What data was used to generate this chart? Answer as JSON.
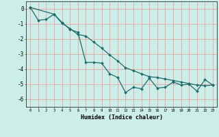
{
  "xlabel": "Humidex (Indice chaleur)",
  "bg_color": "#cceee8",
  "grid_color": "#f0a0a0",
  "line_color": "#1a6b6b",
  "x_data": [
    0,
    1,
    2,
    3,
    4,
    5,
    6,
    7,
    8,
    9,
    10,
    11,
    12,
    13,
    14,
    15,
    16,
    17,
    18,
    19,
    20,
    21,
    22,
    23
  ],
  "y_zigzag": [
    0.1,
    -0.75,
    -0.7,
    -0.35,
    -0.9,
    -1.35,
    -1.55,
    -3.55,
    -3.55,
    -3.6,
    -4.3,
    -4.55,
    -5.55,
    -5.2,
    -5.3,
    -4.6,
    -5.25,
    -5.2,
    -4.85,
    -5.05,
    -5.0,
    -5.45,
    -4.7,
    -5.05
  ],
  "y_straight": [
    0.1,
    null,
    null,
    -0.35,
    -0.95,
    -1.3,
    -1.7,
    -1.8,
    -2.2,
    -2.6,
    -3.05,
    -3.45,
    -3.9,
    -4.1,
    -4.3,
    -4.5,
    -4.55,
    -4.65,
    -4.75,
    -4.85,
    -4.95,
    -5.05,
    -5.1,
    -5.05
  ],
  "ylim": [
    -6.5,
    0.5
  ],
  "xlim": [
    -0.5,
    23.5
  ],
  "yticks": [
    0,
    -1,
    -2,
    -3,
    -4,
    -5,
    -6
  ],
  "xticks": [
    0,
    1,
    2,
    3,
    4,
    5,
    6,
    7,
    8,
    9,
    10,
    11,
    12,
    13,
    14,
    15,
    16,
    17,
    18,
    19,
    20,
    21,
    22,
    23
  ]
}
